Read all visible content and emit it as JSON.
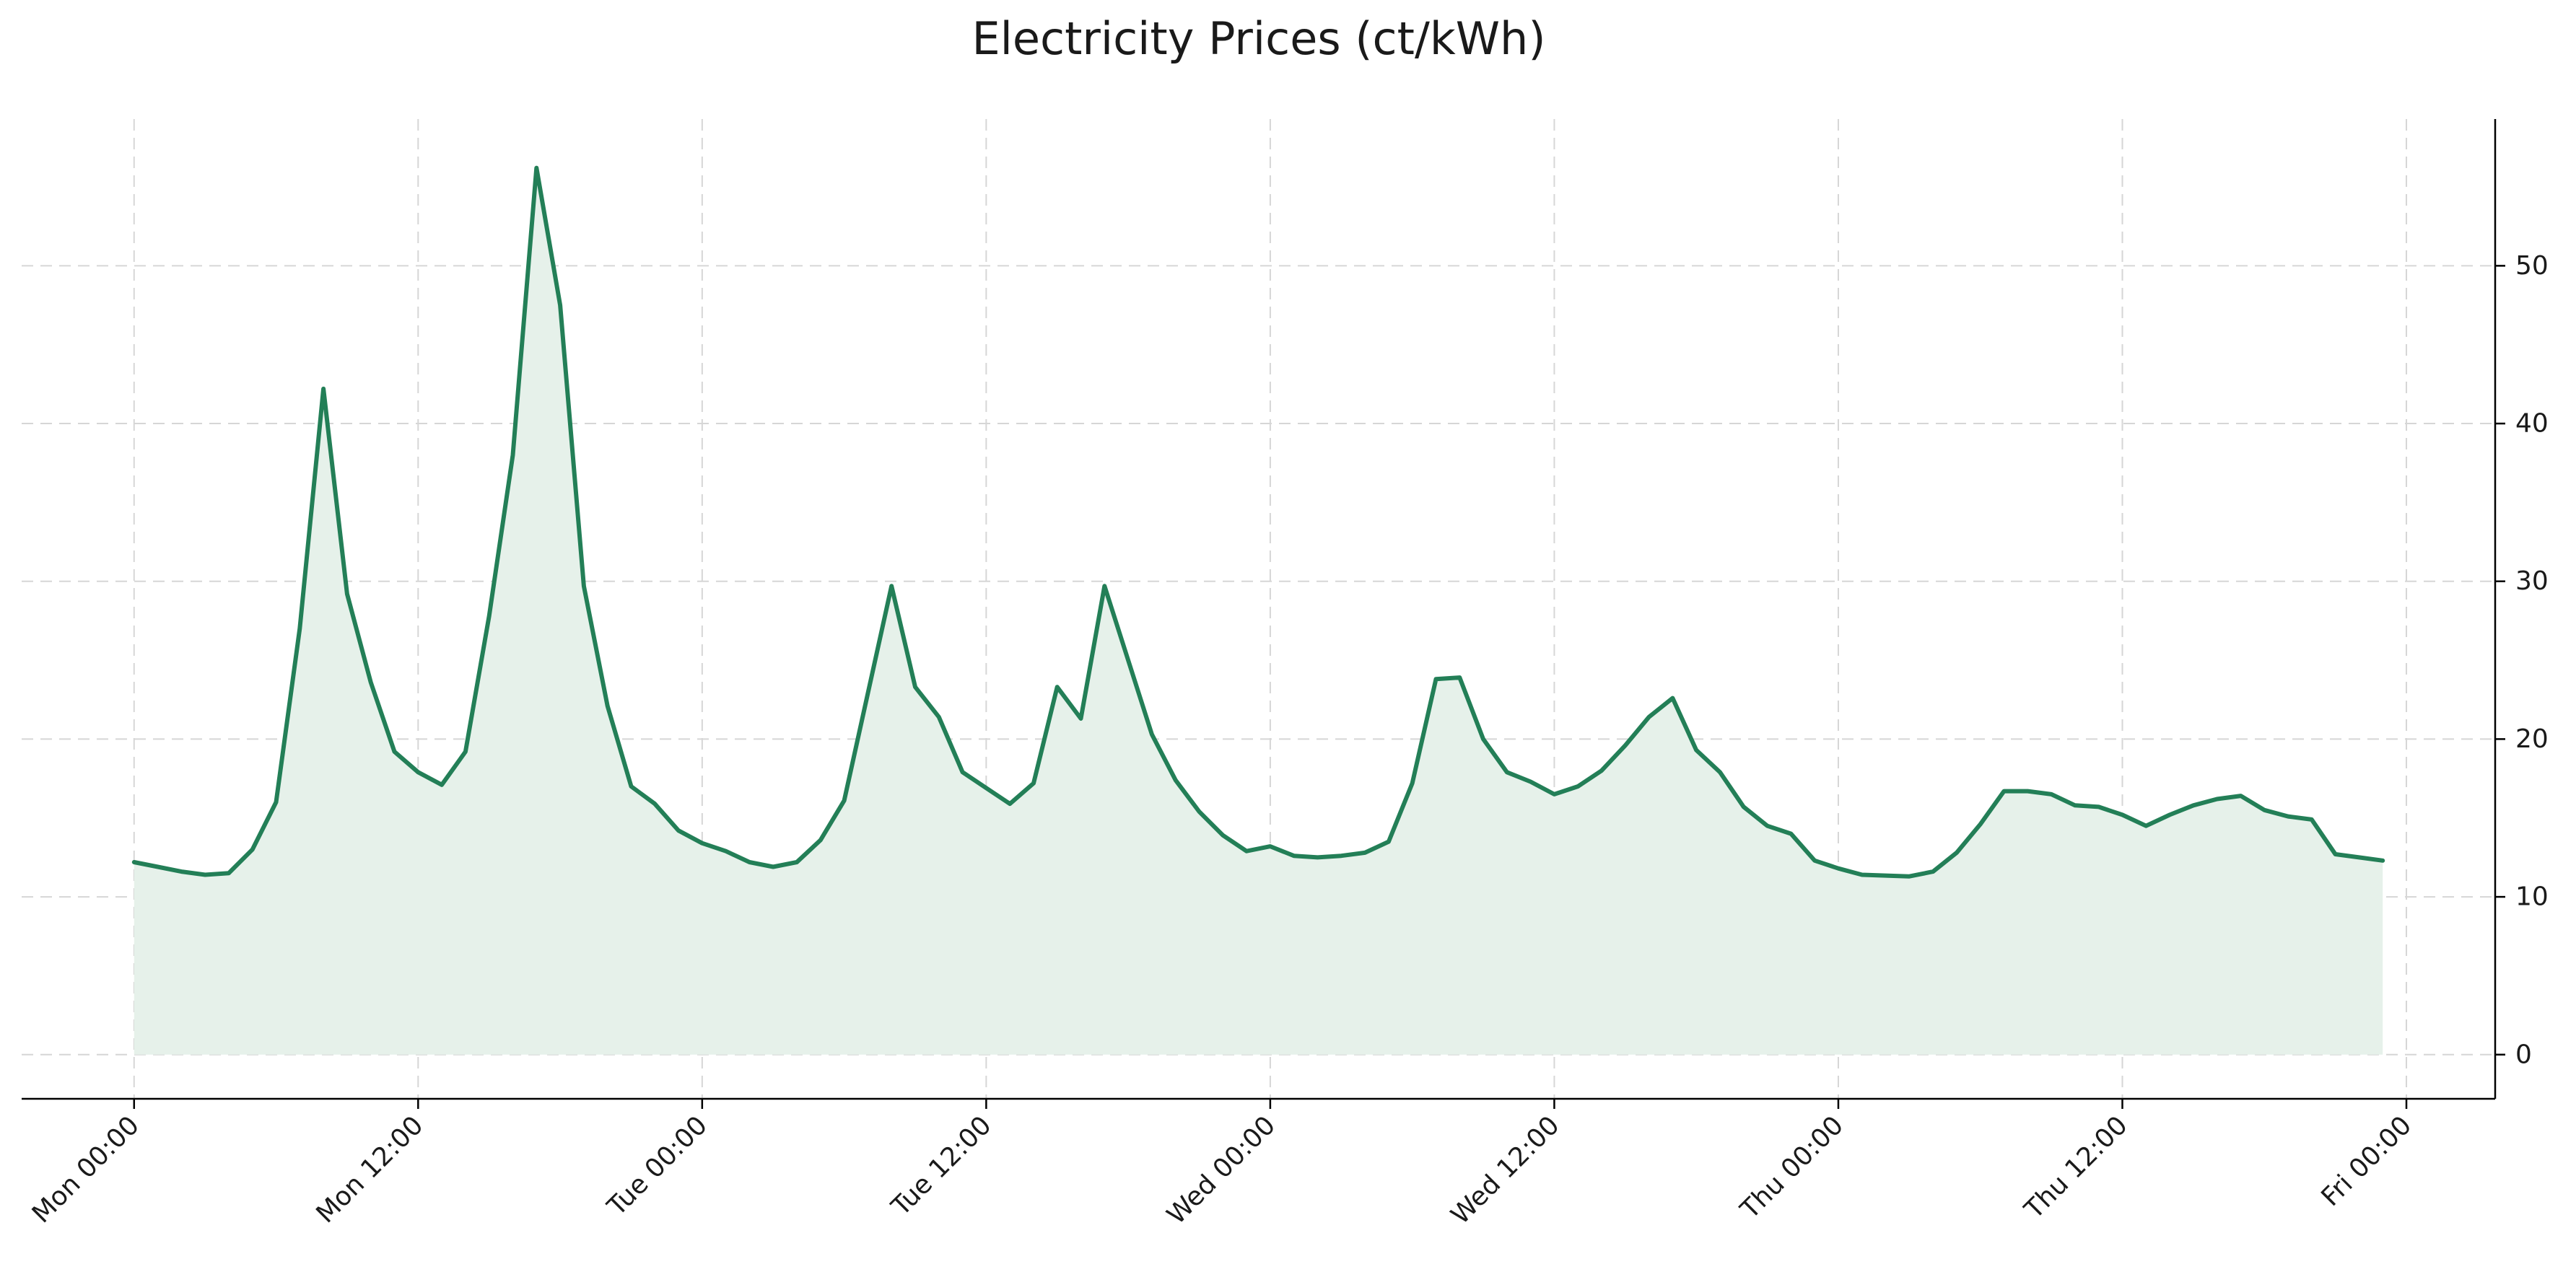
{
  "chart_data": {
    "type": "area",
    "title": "Electricity Prices (ct/kWh)",
    "xlabel": "",
    "ylabel": "",
    "x_unit": "hour from Mon 00:00",
    "x_range_hours": [
      0,
      95
    ],
    "xlim": [
      -4.75,
      99.75
    ],
    "ylim": [
      -2.8,
      59.3
    ],
    "y_axis_side": "right",
    "grid": true,
    "grid_style": "dashed",
    "legend": "none",
    "x_ticks": [
      {
        "hour": 0,
        "label": "Mon 00:00"
      },
      {
        "hour": 12,
        "label": "Mon 12:00"
      },
      {
        "hour": 24,
        "label": "Tue 00:00"
      },
      {
        "hour": 36,
        "label": "Tue 12:00"
      },
      {
        "hour": 48,
        "label": "Wed 00:00"
      },
      {
        "hour": 60,
        "label": "Wed 12:00"
      },
      {
        "hour": 72,
        "label": "Thu 00:00"
      },
      {
        "hour": 84,
        "label": "Thu 12:00"
      },
      {
        "hour": 96,
        "label": "Fri 00:00"
      }
    ],
    "y_ticks": [
      {
        "value": 0,
        "label": "0"
      },
      {
        "value": 10,
        "label": "10"
      },
      {
        "value": 20,
        "label": "20"
      },
      {
        "value": 30,
        "label": "30"
      },
      {
        "value": 40,
        "label": "40"
      },
      {
        "value": 50,
        "label": "50"
      }
    ],
    "series": [
      {
        "line_color": "#237f57",
        "fill_color": "#e6f1ea",
        "values": [
          12.2,
          11.9,
          11.6,
          11.4,
          11.5,
          13.0,
          16.0,
          27.0,
          42.2,
          29.2,
          23.6,
          19.2,
          17.9,
          17.1,
          19.2,
          27.8,
          38.0,
          56.2,
          47.5,
          29.7,
          22.1,
          17.0,
          15.9,
          14.2,
          13.4,
          12.9,
          12.2,
          11.9,
          12.2,
          13.6,
          16.1,
          22.9,
          29.7,
          23.3,
          21.4,
          17.9,
          16.9,
          15.9,
          17.2,
          23.3,
          21.3,
          29.7,
          25.0,
          20.3,
          17.4,
          15.4,
          13.9,
          12.9,
          13.2,
          12.6,
          12.5,
          12.6,
          12.8,
          13.5,
          17.2,
          23.8,
          23.9,
          20.0,
          17.9,
          17.3,
          16.5,
          17.0,
          18.0,
          19.6,
          21.4,
          22.6,
          19.3,
          17.9,
          15.7,
          14.5,
          14.0,
          12.3,
          11.8,
          11.4,
          11.35,
          11.3,
          11.6,
          12.8,
          14.6,
          16.7,
          16.7,
          16.5,
          15.8,
          15.7,
          15.2,
          14.5,
          15.2,
          15.8,
          16.2,
          16.4,
          15.5,
          15.1,
          14.9,
          12.7,
          12.5,
          12.3
        ]
      }
    ]
  }
}
